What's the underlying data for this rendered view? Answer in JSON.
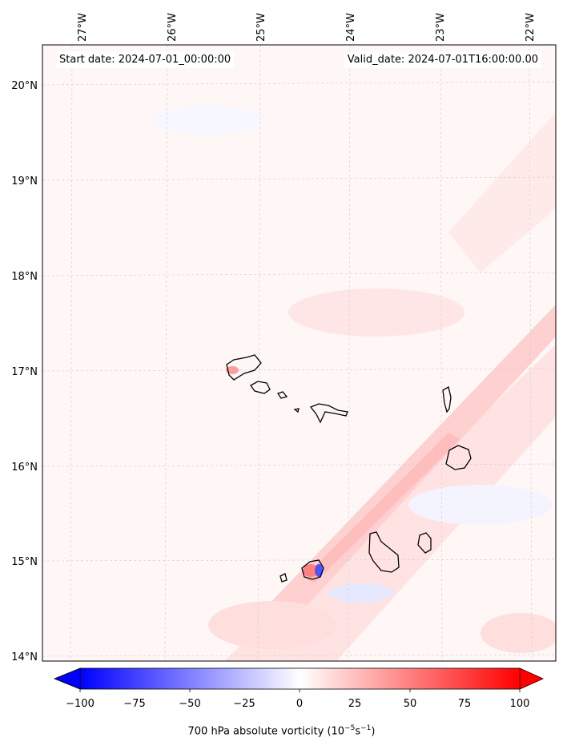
{
  "header": {
    "start_date": "Start date: 2024-07-01_00:00:00",
    "valid_date": "Valid_date: 2024-07-01T16:00:00.00"
  },
  "map": {
    "lon_labels": [
      "27°W",
      "26°W",
      "25°W",
      "24°W",
      "23°W",
      "22°W"
    ],
    "lat_labels": [
      "20°N",
      "19°N",
      "18°N",
      "17°N",
      "16°N",
      "15°N",
      "14°N"
    ],
    "gridlines": true,
    "field": "700 hPa absolute vorticity",
    "dominant_colors": {
      "positive": "#ff0000",
      "negative": "#0000ff",
      "zero": "#ffffff"
    }
  },
  "colorbar": {
    "ticks": [
      "−100",
      "−75",
      "−50",
      "−25",
      "0",
      "25",
      "50",
      "75",
      "100"
    ],
    "title_main": "700 hPa absolute vorticity (10",
    "title_exp1": "−5",
    "title_mid": "s",
    "title_exp2": "−1",
    "title_end": ")",
    "vmin": -100,
    "vmax": 100,
    "extend": "both"
  }
}
